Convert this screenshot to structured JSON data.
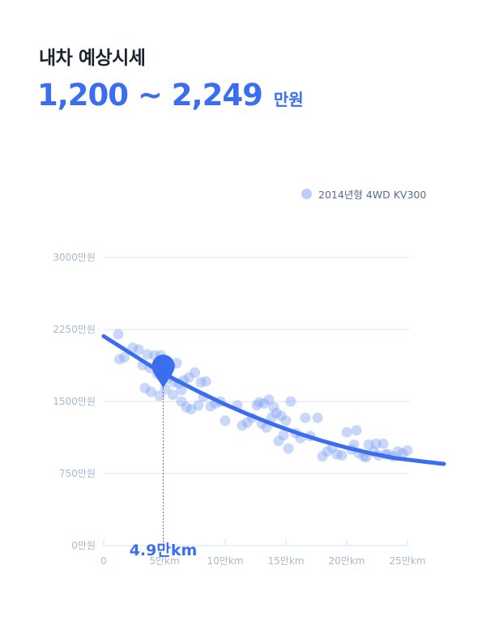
{
  "header": {
    "title": "내차 예상시세"
  },
  "price": {
    "range": "1,200 ~ 2,249",
    "unit": "만원"
  },
  "colors": {
    "accent": "#3b6df0",
    "point": "#7ea3f3",
    "grid": "#d9e3f2",
    "tick": "#a8b9d2"
  },
  "chart_data": {
    "type": "scatter",
    "legend": {
      "label": "2014년형 4WD KV300",
      "placement": "top-right"
    },
    "x_ticks": [
      {
        "value": 0,
        "label": "0"
      },
      {
        "value": 50000,
        "label": "5만km"
      },
      {
        "value": 100000,
        "label": "10만km"
      },
      {
        "value": 150000,
        "label": "15만km"
      },
      {
        "value": 200000,
        "label": "20만km"
      },
      {
        "value": 250000,
        "label": "25만km"
      }
    ],
    "y_ticks": [
      {
        "value": 0,
        "label": "0만원"
      },
      {
        "value": 750,
        "label": "750만원"
      },
      {
        "value": 1500,
        "label": "1500만원"
      },
      {
        "value": 2250,
        "label": "2250만원"
      },
      {
        "value": 3000,
        "label": "3000만원"
      }
    ],
    "xlim": [
      0,
      280000
    ],
    "ylim": [
      0,
      3000
    ],
    "marker": {
      "x": 49000,
      "y": 1820,
      "label": "4.9만km"
    },
    "trend": [
      [
        0,
        2180
      ],
      [
        20000,
        2020
      ],
      [
        40000,
        1860
      ],
      [
        60000,
        1720
      ],
      [
        80000,
        1590
      ],
      [
        100000,
        1470
      ],
      [
        120000,
        1360
      ],
      [
        140000,
        1260
      ],
      [
        160000,
        1170
      ],
      [
        180000,
        1090
      ],
      [
        200000,
        1020
      ],
      [
        220000,
        960
      ],
      [
        240000,
        910
      ],
      [
        260000,
        880
      ],
      [
        280000,
        850
      ]
    ],
    "points": [
      [
        12000,
        2200
      ],
      [
        13000,
        1940
      ],
      [
        17000,
        1960
      ],
      [
        24000,
        2060
      ],
      [
        29000,
        2040
      ],
      [
        36000,
        1990
      ],
      [
        42000,
        1980
      ],
      [
        47000,
        1980
      ],
      [
        50000,
        1900
      ],
      [
        55000,
        1870
      ],
      [
        60000,
        1900
      ],
      [
        32000,
        1880
      ],
      [
        38000,
        1850
      ],
      [
        44000,
        1790
      ],
      [
        48000,
        1760
      ],
      [
        53000,
        1740
      ],
      [
        58000,
        1700
      ],
      [
        62000,
        1690
      ],
      [
        66000,
        1720
      ],
      [
        70000,
        1750
      ],
      [
        75000,
        1800
      ],
      [
        80000,
        1700
      ],
      [
        84000,
        1710
      ],
      [
        34000,
        1640
      ],
      [
        39000,
        1600
      ],
      [
        46000,
        1560
      ],
      [
        51000,
        1630
      ],
      [
        57000,
        1570
      ],
      [
        64000,
        1620
      ],
      [
        68000,
        1440
      ],
      [
        72000,
        1420
      ],
      [
        78000,
        1460
      ],
      [
        82000,
        1550
      ],
      [
        88000,
        1450
      ],
      [
        92000,
        1480
      ],
      [
        96000,
        1500
      ],
      [
        64000,
        1500
      ],
      [
        100000,
        1300
      ],
      [
        110000,
        1460
      ],
      [
        114000,
        1250
      ],
      [
        118000,
        1280
      ],
      [
        122000,
        1330
      ],
      [
        126000,
        1460
      ],
      [
        128000,
        1490
      ],
      [
        132000,
        1480
      ],
      [
        136000,
        1520
      ],
      [
        140000,
        1440
      ],
      [
        142000,
        1380
      ],
      [
        146000,
        1350
      ],
      [
        150000,
        1300
      ],
      [
        154000,
        1500
      ],
      [
        158000,
        1170
      ],
      [
        162000,
        1120
      ],
      [
        130000,
        1270
      ],
      [
        134000,
        1230
      ],
      [
        138000,
        1330
      ],
      [
        144000,
        1090
      ],
      [
        148000,
        1150
      ],
      [
        152000,
        1010
      ],
      [
        166000,
        1330
      ],
      [
        170000,
        1140
      ],
      [
        176000,
        1330
      ],
      [
        180000,
        930
      ],
      [
        184000,
        980
      ],
      [
        188000,
        1020
      ],
      [
        192000,
        950
      ],
      [
        196000,
        940
      ],
      [
        200000,
        1180
      ],
      [
        204000,
        1000
      ],
      [
        206000,
        1050
      ],
      [
        210000,
        960
      ],
      [
        214000,
        930
      ],
      [
        218000,
        1050
      ],
      [
        222000,
        980
      ],
      [
        226000,
        940
      ],
      [
        230000,
        1060
      ],
      [
        234000,
        950
      ],
      [
        238000,
        930
      ],
      [
        242000,
        980
      ],
      [
        246000,
        960
      ],
      [
        250000,
        990
      ],
      [
        208000,
        1200
      ],
      [
        216000,
        920
      ],
      [
        224000,
        1060
      ],
      [
        232000,
        950
      ]
    ]
  }
}
